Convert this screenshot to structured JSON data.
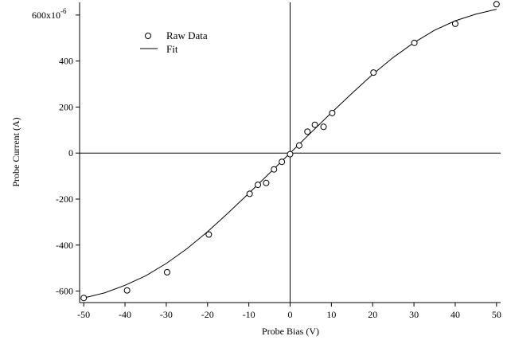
{
  "chart_data": {
    "type": "scatter",
    "title": "",
    "xlabel": "Probe Bias (V)",
    "ylabel": "Probe Current (A)",
    "xlim": [
      -51,
      51
    ],
    "ylim": [
      -650,
      655
    ],
    "y_top_tick_base": "600x10",
    "y_top_tick_exp": "-6",
    "x_ticks": [
      {
        "value": -50,
        "label": "-50"
      },
      {
        "value": -40,
        "label": "-40"
      },
      {
        "value": -30,
        "label": "-30"
      },
      {
        "value": -20,
        "label": "-20"
      },
      {
        "value": -10,
        "label": "-10"
      },
      {
        "value": 0,
        "label": "0"
      },
      {
        "value": 10,
        "label": "10"
      },
      {
        "value": 20,
        "label": "20"
      },
      {
        "value": 30,
        "label": "30"
      },
      {
        "value": 40,
        "label": "40"
      },
      {
        "value": 50,
        "label": "50"
      }
    ],
    "y_ticks": [
      {
        "value": 600,
        "label": ""
      },
      {
        "value": 400,
        "label": "400"
      },
      {
        "value": 200,
        "label": "200"
      },
      {
        "value": 0,
        "label": "0"
      },
      {
        "value": -200,
        "label": "-200"
      },
      {
        "value": -400,
        "label": "-400"
      },
      {
        "value": -600,
        "label": "-600"
      }
    ],
    "zero_lines": true,
    "grid": false,
    "legend": {
      "position": "top-left",
      "entries": [
        {
          "label": "Raw Data",
          "marker": "circle"
        },
        {
          "label": "Fit",
          "marker": "line"
        }
      ]
    },
    "series": [
      {
        "name": "Raw Data",
        "kind": "points",
        "points": [
          {
            "x": -50,
            "y": -630
          },
          {
            "x": -39.5,
            "y": -597
          },
          {
            "x": -29.8,
            "y": -518
          },
          {
            "x": -19.7,
            "y": -354
          },
          {
            "x": -9.8,
            "y": -177
          },
          {
            "x": -7.8,
            "y": -138
          },
          {
            "x": -5.8,
            "y": -130
          },
          {
            "x": -3.9,
            "y": -71
          },
          {
            "x": -2.0,
            "y": -38
          },
          {
            "x": 0.0,
            "y": -5
          },
          {
            "x": 2.2,
            "y": 33
          },
          {
            "x": 4.2,
            "y": 93
          },
          {
            "x": 6.0,
            "y": 123
          },
          {
            "x": 8.1,
            "y": 114
          },
          {
            "x": 10.2,
            "y": 174
          },
          {
            "x": 20.2,
            "y": 350
          },
          {
            "x": 30.1,
            "y": 479
          },
          {
            "x": 40.0,
            "y": 562
          },
          {
            "x": 50.0,
            "y": 647
          }
        ]
      },
      {
        "name": "Fit",
        "kind": "line",
        "points": [
          {
            "x": -50,
            "y": -630
          },
          {
            "x": -45,
            "y": -608
          },
          {
            "x": -40,
            "y": -575
          },
          {
            "x": -35,
            "y": -534
          },
          {
            "x": -30,
            "y": -480
          },
          {
            "x": -25,
            "y": -416
          },
          {
            "x": -20,
            "y": -342
          },
          {
            "x": -15,
            "y": -260
          },
          {
            "x": -10,
            "y": -175
          },
          {
            "x": -5,
            "y": -88
          },
          {
            "x": 0,
            "y": 0
          },
          {
            "x": 5,
            "y": 88
          },
          {
            "x": 10,
            "y": 175
          },
          {
            "x": 15,
            "y": 260
          },
          {
            "x": 20,
            "y": 342
          },
          {
            "x": 25,
            "y": 416
          },
          {
            "x": 30,
            "y": 480
          },
          {
            "x": 35,
            "y": 534
          },
          {
            "x": 40,
            "y": 575
          },
          {
            "x": 45,
            "y": 604
          },
          {
            "x": 50,
            "y": 625
          }
        ]
      }
    ]
  }
}
